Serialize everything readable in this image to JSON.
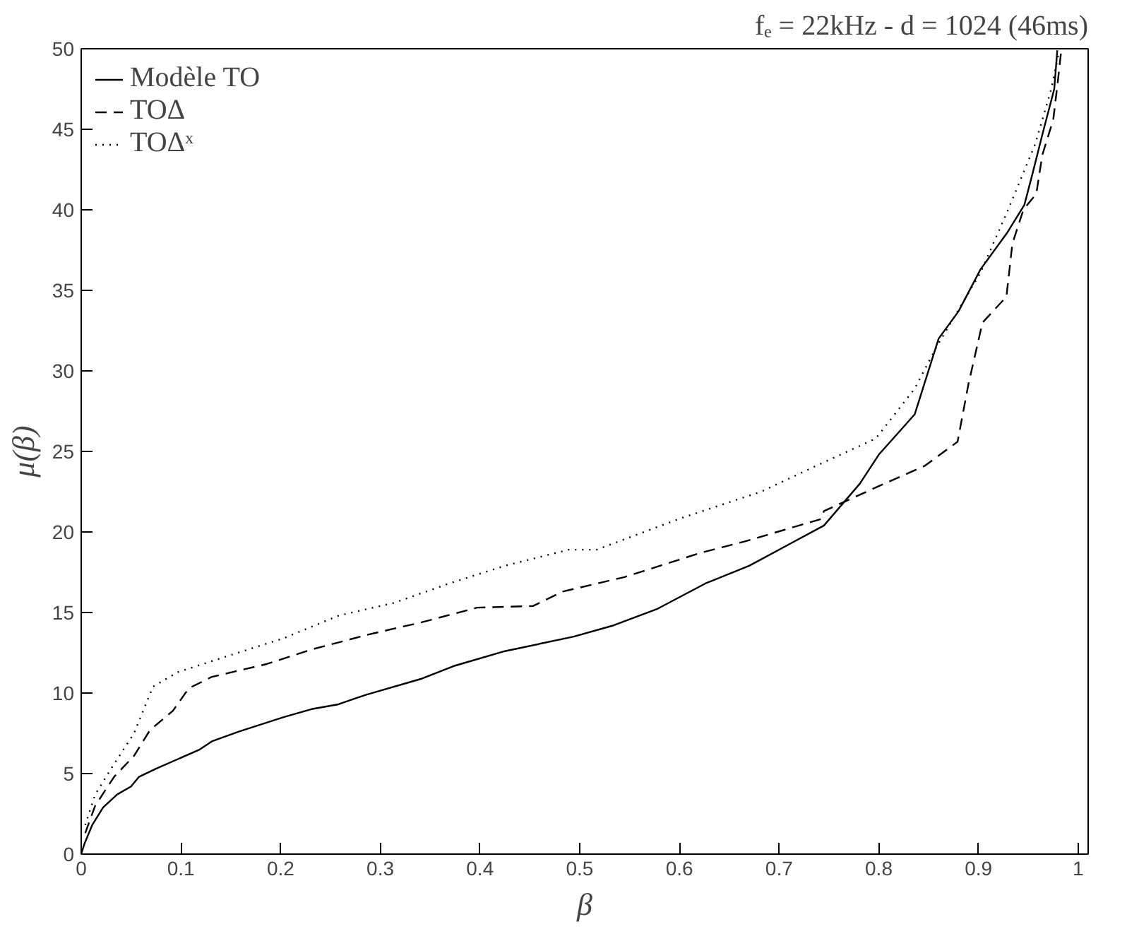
{
  "chart_data": {
    "type": "line",
    "title": "fₑ = 22kHz - d = 1024 (46ms)",
    "xlabel": "β",
    "ylabel": "μ(β)",
    "xlim": [
      0,
      1.01
    ],
    "ylim": [
      0,
      50
    ],
    "xticks": [
      0,
      0.1,
      0.2,
      0.3,
      0.4,
      0.5,
      0.6,
      0.7,
      0.8,
      0.9,
      1
    ],
    "yticks": [
      0,
      5,
      10,
      15,
      20,
      25,
      30,
      35,
      40,
      45,
      50
    ],
    "grid": false,
    "legend": "top left",
    "series": [
      {
        "name": "Modèle TO",
        "color": "#000000",
        "line_style": "solid",
        "x": [
          0,
          0.003,
          0.011,
          0.022,
          0.036,
          0.05,
          0.058,
          0.075,
          0.097,
          0.119,
          0.131,
          0.158,
          0.203,
          0.231,
          0.258,
          0.286,
          0.342,
          0.375,
          0.425,
          0.494,
          0.534,
          0.577,
          0.626,
          0.67,
          0.709,
          0.745,
          0.781,
          0.8,
          0.836,
          0.86,
          0.88,
          0.902,
          0.929,
          0.946,
          0.954,
          0.965,
          0.976,
          0.979
        ],
        "values": [
          0,
          0.6,
          1.8,
          2.9,
          3.7,
          4.2,
          4.8,
          5.3,
          5.9,
          6.5,
          7.0,
          7.6,
          8.5,
          9.0,
          9.3,
          9.9,
          10.9,
          11.7,
          12.6,
          13.5,
          14.2,
          15.2,
          16.8,
          17.9,
          19.2,
          20.4,
          23.0,
          24.8,
          27.3,
          32.0,
          33.7,
          36.3,
          38.6,
          40.3,
          42.2,
          44.9,
          47.5,
          49.9
        ]
      },
      {
        "name": "TOΔ",
        "color": "#000000",
        "line_style": "dashed",
        "x": [
          0.004,
          0.014,
          0.033,
          0.053,
          0.069,
          0.092,
          0.108,
          0.131,
          0.186,
          0.231,
          0.286,
          0.342,
          0.397,
          0.453,
          0.483,
          0.545,
          0.621,
          0.665,
          0.742,
          0.745,
          0.802,
          0.846,
          0.879,
          0.89,
          0.904,
          0.928,
          0.934,
          0.945,
          0.958,
          0.964,
          0.975,
          0.98,
          0.983
        ],
        "values": [
          1.3,
          3.0,
          4.8,
          6.1,
          7.7,
          8.9,
          10.3,
          11.0,
          11.8,
          12.7,
          13.6,
          14.4,
          15.3,
          15.4,
          16.3,
          17.2,
          18.7,
          19.4,
          20.8,
          21.3,
          22.9,
          24.1,
          25.6,
          29.2,
          33.0,
          34.6,
          37.9,
          40.0,
          41.0,
          43.4,
          45.6,
          48.2,
          49.9
        ]
      },
      {
        "name": "TOΔˣ",
        "color": "#000000",
        "line_style": "dotted",
        "x": [
          0.004,
          0.014,
          0.031,
          0.053,
          0.072,
          0.097,
          0.147,
          0.203,
          0.258,
          0.314,
          0.369,
          0.425,
          0.489,
          0.517,
          0.599,
          0.682,
          0.737,
          0.797,
          0.836,
          0.858,
          0.902,
          0.929,
          0.957,
          0.973,
          0.981
        ],
        "values": [
          1.8,
          3.7,
          5.4,
          7.5,
          10.4,
          11.3,
          12.3,
          13.4,
          14.8,
          15.6,
          16.8,
          17.9,
          18.9,
          18.9,
          20.8,
          22.5,
          24.1,
          25.8,
          28.9,
          31.5,
          36.1,
          39.9,
          44.1,
          47.5,
          49.9
        ]
      }
    ]
  }
}
